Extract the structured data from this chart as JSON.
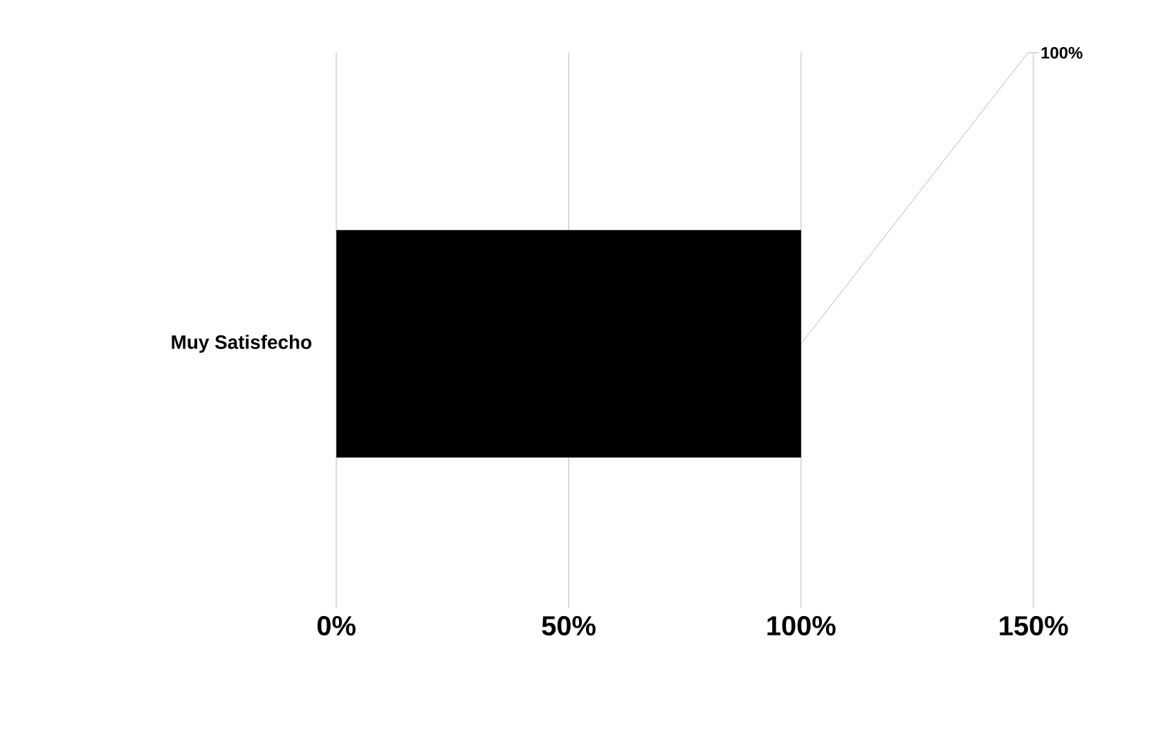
{
  "chart_data": {
    "type": "bar",
    "orientation": "horizontal",
    "categories": [
      "Muy Satisfecho"
    ],
    "values": [
      100
    ],
    "color": "#000000",
    "value_labels": [
      "100%"
    ],
    "xlim": [
      0,
      150
    ],
    "xticks": [
      {
        "value": 0,
        "label": "0%"
      },
      {
        "value": 50,
        "label": "50%"
      },
      {
        "value": 100,
        "label": "100%"
      },
      {
        "value": 150,
        "label": "150%"
      }
    ],
    "grid": "x"
  }
}
